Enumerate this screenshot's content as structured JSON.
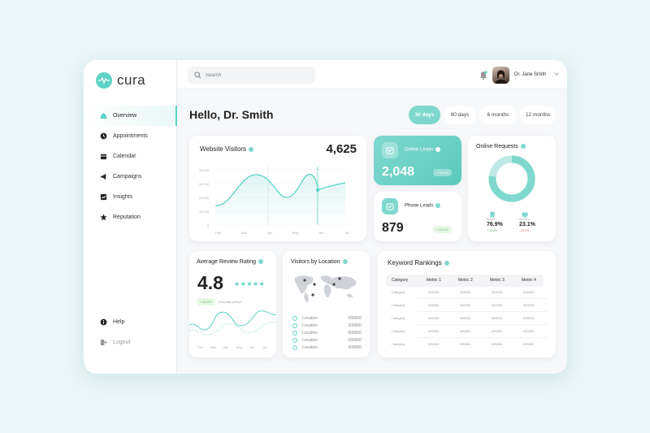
{
  "brand": {
    "name": "cura",
    "accent": "#5dd3c5"
  },
  "sidebar": {
    "items": [
      {
        "label": "Overview",
        "icon": "home-icon",
        "active": true
      },
      {
        "label": "Appointments",
        "icon": "clock-icon"
      },
      {
        "label": "Calendar",
        "icon": "calendar-icon"
      },
      {
        "label": "Campaigns",
        "icon": "megaphone-icon"
      },
      {
        "label": "Insights",
        "icon": "chart-icon"
      },
      {
        "label": "Reputation",
        "icon": "star-icon"
      }
    ],
    "bottom": [
      {
        "label": "Help",
        "icon": "info-icon"
      },
      {
        "label": "Logout",
        "icon": "logout-icon"
      }
    ]
  },
  "topbar": {
    "search_placeholder": "Search",
    "user_name": "Dr. Jane Smith"
  },
  "greeting": "Hello, Dr. Smith",
  "ranges": [
    {
      "label": "30 days",
      "active": true
    },
    {
      "label": "90 days"
    },
    {
      "label": "6 months"
    },
    {
      "label": "12 months"
    }
  ],
  "website_visitors": {
    "title": "Website Visitors",
    "value": "4,625",
    "y_ticks": [
      "40,000",
      "30,000",
      "20,000",
      "10,000",
      "0"
    ],
    "x_ticks": [
      "Feb",
      "Mar",
      "Apr",
      "May",
      "Jun",
      "Jul"
    ]
  },
  "online_leads": {
    "title": "Online Leads",
    "value": "2,048",
    "badge": "+ 20.0%"
  },
  "phone_leads": {
    "title": "Phone Leads",
    "value": "879",
    "badge": "+ 20.0%"
  },
  "online_requests": {
    "title": "Online Requests",
    "desktop_label": "Mobile",
    "desktop_value": "76.9%",
    "desktop_change": "+ 20.0%",
    "mobile_label": "Desktop",
    "mobile_value": "23.1%",
    "mobile_change": "- 20.0%"
  },
  "review_rating": {
    "title": "Average Review Rating",
    "value": "4.8",
    "stars": "★★★★★",
    "badge": "+ 20.0%",
    "badge_note": "from last period",
    "x_ticks": [
      "Feb",
      "Mar",
      "Apr",
      "May",
      "Jun",
      "Jul"
    ]
  },
  "visitors_location": {
    "title": "Visitors by Location",
    "rows": [
      {
        "label": "Location",
        "value": "000000"
      },
      {
        "label": "Location",
        "value": "000000"
      },
      {
        "label": "Location",
        "value": "000000"
      },
      {
        "label": "Location",
        "value": "000000"
      },
      {
        "label": "Location",
        "value": "000000"
      }
    ]
  },
  "keyword_rankings": {
    "title": "Keyword Rankings",
    "headers": [
      "Category",
      "Metric 1",
      "Metric 2",
      "Metric 3",
      "Metric 4"
    ],
    "rows": [
      [
        "Category",
        "000000",
        "000000",
        "000000",
        "000000"
      ],
      [
        "Category",
        "000000",
        "000000",
        "000000",
        "000000"
      ],
      [
        "Category",
        "000000",
        "000000",
        "000000",
        "000000"
      ],
      [
        "Category",
        "000000",
        "000000",
        "000000",
        "000000"
      ],
      [
        "Category",
        "000000",
        "000000",
        "000000",
        "000000"
      ]
    ]
  }
}
